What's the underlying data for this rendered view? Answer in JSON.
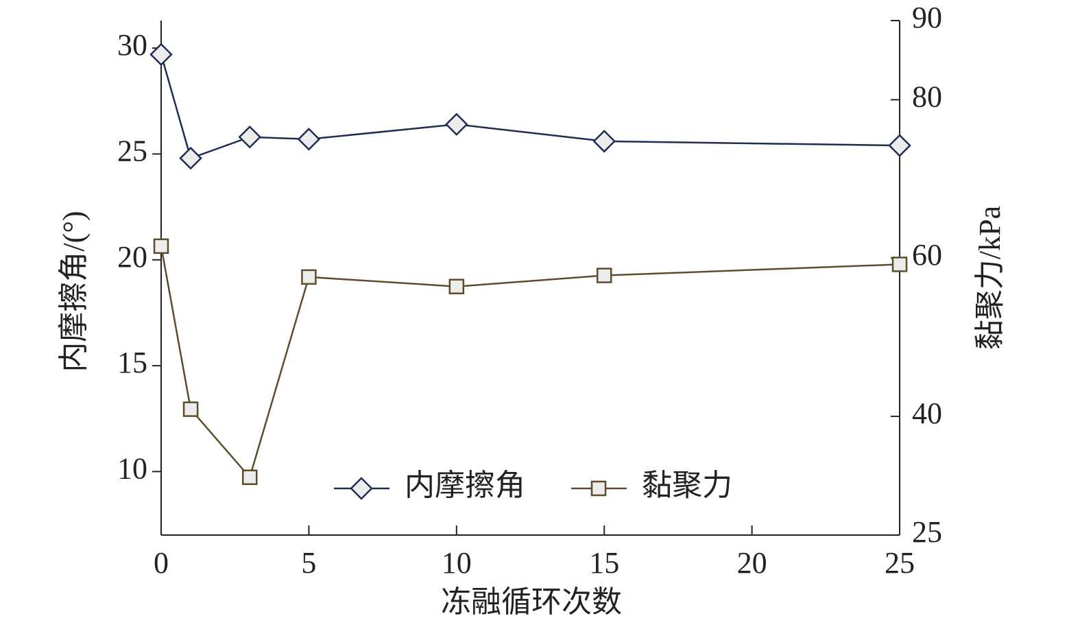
{
  "chart_data": {
    "type": "line",
    "x_label": "冻融循环次数",
    "y_label": "内摩擦角/(°)",
    "y2_label": "黏聚力/kPa",
    "x": [
      0,
      1,
      3,
      5,
      10,
      15,
      25
    ],
    "xlim": [
      0,
      25
    ],
    "xticks": [
      0,
      5,
      10,
      15,
      20,
      25
    ],
    "ylim": [
      7,
      31.3
    ],
    "yticks": [
      10,
      15,
      20,
      25,
      30
    ],
    "y2lim": [
      25,
      90
    ],
    "y2ticks": [
      25,
      40,
      60,
      80,
      90
    ],
    "legend": "bottom",
    "series": [
      {
        "name": "内摩擦角",
        "color": "#1f2d55",
        "marker": "diamond",
        "values": [
          29.7,
          24.8,
          25.8,
          25.7,
          26.4,
          25.6,
          25.4
        ]
      },
      {
        "name": "黏聚力",
        "color": "#5e4b2a",
        "marker": "square",
        "axis": "y2",
        "values": [
          61.5,
          40.9,
          32.3,
          57.6,
          56.4,
          57.8,
          59.2
        ]
      }
    ]
  }
}
